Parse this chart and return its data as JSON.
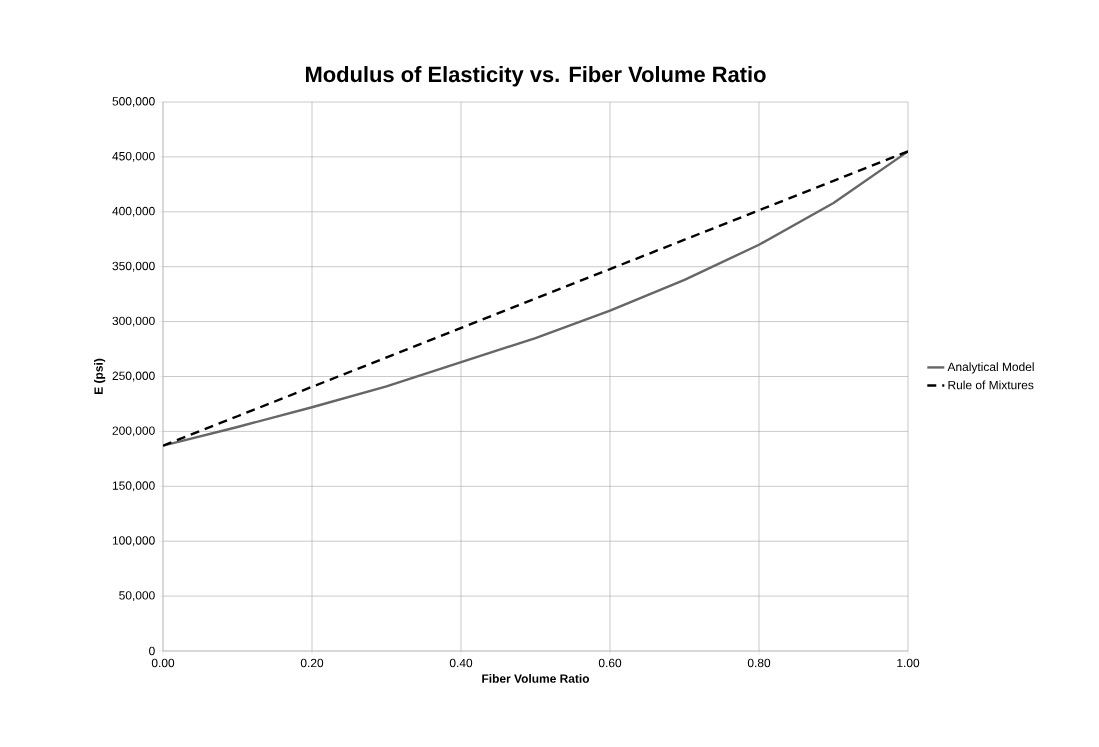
{
  "chart_data": {
    "type": "line",
    "title": "Modulus of Elasticity vs. Fiber Volume Ratio",
    "xlabel": "Fiber Volume Ratio",
    "ylabel": "E (psi)",
    "x": [
      0,
      0.1,
      0.2,
      0.3,
      0.4,
      0.5,
      0.6,
      0.7,
      0.8,
      0.9,
      1.0
    ],
    "series": [
      {
        "name": "Analytical Model",
        "color": "#666666",
        "line_style": "solid",
        "values": [
          187000,
          204000,
          222000,
          241000,
          263000,
          285000,
          310000,
          338000,
          370000,
          408000,
          455000
        ]
      },
      {
        "name": "Rule of Mixtures",
        "color": "#000000",
        "line_style": "dashed",
        "values": [
          187000,
          213800,
          240600,
          267400,
          294200,
          321000,
          347800,
          374600,
          401400,
          428200,
          455000
        ]
      }
    ],
    "xlim": [
      0,
      1
    ],
    "ylim": [
      0,
      500000
    ],
    "xticks": [
      {
        "value": 0,
        "label": "0.00"
      },
      {
        "value": 0.2,
        "label": "0.20"
      },
      {
        "value": 0.4,
        "label": "0.40"
      },
      {
        "value": 0.6,
        "label": "0.60"
      },
      {
        "value": 0.8,
        "label": "0.80"
      },
      {
        "value": 1,
        "label": "1.00"
      }
    ],
    "yticks": [
      0,
      {
        "value": 50000,
        "label": "50,000"
      },
      {
        "value": 100000,
        "label": "100,000"
      },
      {
        "value": 150000,
        "label": "150,000"
      },
      {
        "value": 200000,
        "label": "200,000"
      },
      {
        "value": 250000,
        "label": "250,000"
      },
      {
        "value": 300000,
        "label": "300,000"
      },
      {
        "value": 350000,
        "label": "350,000"
      },
      {
        "value": 400000,
        "label": "400,000"
      },
      {
        "value": 450000,
        "label": "450,000"
      },
      {
        "value": 500000,
        "label": "500,000"
      }
    ],
    "grid": true,
    "legend": "right",
    "marker": "none"
  }
}
